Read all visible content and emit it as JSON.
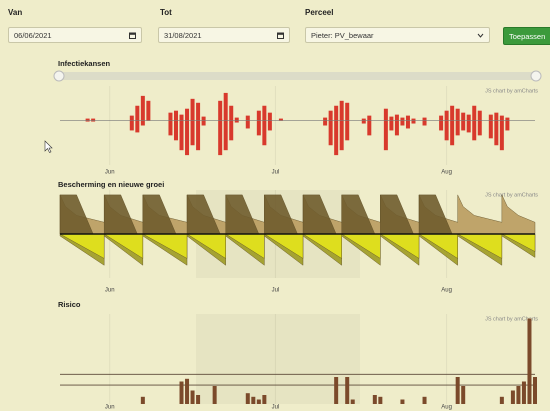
{
  "form": {
    "van_label": "Van",
    "van_value": "06/06/2021",
    "tot_label": "Tot",
    "tot_value": "31/08/2021",
    "perceel_label": "Perceel",
    "perceel_value": "Pieter: PV_bewaar",
    "button": "Toepassen"
  },
  "charts": [
    {
      "type": "bar",
      "title": "Infectiekansen",
      "credit": "JS chart by amCharts",
      "xlim": [
        0,
        86
      ],
      "xticks": [
        {
          "value": 9,
          "label": "Jun"
        },
        {
          "value": 39,
          "label": "Jul"
        },
        {
          "value": 70,
          "label": "Aug"
        }
      ],
      "ylim": [
        -45,
        35
      ],
      "x": [
        5,
        6,
        13,
        14,
        15,
        16,
        20,
        21,
        22,
        23,
        24,
        25,
        26,
        29,
        30,
        31,
        32,
        34,
        36,
        37,
        38,
        40,
        48,
        49,
        50,
        51,
        52,
        55,
        56,
        59,
        60,
        61,
        62,
        63,
        64,
        66,
        69,
        70,
        71,
        72,
        73,
        74,
        75,
        76,
        78,
        79,
        80,
        81
      ],
      "series": [
        {
          "color": "#d8392c",
          "values": [
            2,
            2,
            5,
            15,
            25,
            20,
            8,
            10,
            6,
            12,
            22,
            18,
            4,
            20,
            28,
            15,
            3,
            5,
            10,
            15,
            8,
            2,
            3,
            10,
            15,
            20,
            18,
            2,
            5,
            12,
            4,
            6,
            3,
            5,
            2,
            3,
            5,
            10,
            15,
            12,
            8,
            6,
            15,
            10,
            6,
            8,
            5,
            3
          ]
        },
        {
          "color": "#d8392c",
          "values": [
            -1,
            -1,
            -10,
            -12,
            -5,
            0,
            -15,
            -20,
            -30,
            -35,
            -25,
            -30,
            -5,
            -35,
            -30,
            -20,
            -2,
            -8,
            -15,
            -25,
            -10,
            0,
            -5,
            -25,
            -35,
            -30,
            -20,
            -3,
            -15,
            -30,
            -10,
            -15,
            -5,
            -8,
            -3,
            -5,
            -10,
            -20,
            -25,
            -15,
            -10,
            -12,
            -20,
            -15,
            -18,
            -25,
            -30,
            -10
          ]
        }
      ]
    },
    {
      "type": "area",
      "title": "Bescherming en nieuwe groei",
      "credit": "JS chart by amCharts",
      "xlim": [
        0,
        86
      ],
      "xticks": [
        {
          "value": 9,
          "label": "Jun"
        },
        {
          "value": 39,
          "label": "Jul"
        },
        {
          "value": 70,
          "label": "Aug"
        }
      ],
      "ylim": [
        -45,
        45
      ],
      "series": [
        {
          "color": "#b99b5f",
          "x": [
            0,
            0,
            1,
            3,
            8,
            8,
            9,
            11,
            15,
            15,
            16,
            18,
            23,
            23,
            24,
            26,
            30,
            30,
            31,
            33,
            37,
            37,
            38,
            40,
            44,
            44,
            45,
            47,
            51,
            51,
            52,
            54,
            58,
            58,
            59,
            61,
            65,
            65,
            66,
            68,
            72,
            72,
            73,
            75,
            80,
            80,
            81,
            83,
            86
          ],
          "values": [
            12,
            40,
            28,
            19,
            12,
            40,
            28,
            19,
            12,
            40,
            28,
            19,
            12,
            40,
            28,
            19,
            12,
            40,
            28,
            19,
            12,
            40,
            28,
            19,
            12,
            40,
            28,
            19,
            12,
            40,
            28,
            19,
            12,
            40,
            28,
            19,
            12,
            40,
            28,
            19,
            12,
            40,
            28,
            19,
            12,
            40,
            28,
            19,
            12
          ]
        },
        {
          "color": "#6f5c2d",
          "x": [
            0,
            0,
            3,
            6,
            8,
            8,
            11,
            14,
            15,
            15,
            18,
            21,
            23,
            23,
            26,
            29,
            30,
            30,
            33,
            36,
            37,
            37,
            40,
            43,
            44,
            44,
            47,
            50,
            51,
            51,
            54,
            57,
            58,
            58,
            61,
            64,
            65,
            65,
            68,
            71
          ],
          "values": [
            0,
            40,
            40,
            0,
            0,
            40,
            40,
            0,
            0,
            40,
            40,
            0,
            0,
            40,
            40,
            0,
            0,
            40,
            40,
            0,
            0,
            40,
            40,
            0,
            0,
            40,
            40,
            0,
            0,
            40,
            40,
            0,
            0,
            40,
            40,
            0,
            0,
            40,
            40,
            0
          ]
        },
        {
          "color": "#9d9a22",
          "x": [
            0,
            8,
            8,
            15,
            15,
            23,
            23,
            30,
            30,
            37,
            37,
            44,
            44,
            51,
            51,
            58,
            58,
            65,
            65,
            72,
            72,
            80,
            80,
            86
          ],
          "values": [
            -2,
            -32,
            -2,
            -32,
            -2,
            -32,
            -2,
            -32,
            -2,
            -32,
            -2,
            -32,
            -2,
            -32,
            -2,
            -32,
            -2,
            -32,
            -2,
            -32,
            -2,
            -32,
            -2,
            -24
          ]
        },
        {
          "color": "#e4e41c",
          "x": [
            0,
            8,
            8,
            15,
            15,
            23,
            23,
            30,
            30,
            37,
            37,
            44,
            44,
            51,
            51,
            58,
            58,
            65,
            65,
            72,
            72,
            80,
            80,
            86
          ],
          "values": [
            0,
            -25,
            0,
            -25,
            0,
            -25,
            0,
            -25,
            0,
            -25,
            0,
            -25,
            0,
            -25,
            0,
            -25,
            0,
            -25,
            0,
            -25,
            0,
            -25,
            0,
            -18
          ]
        }
      ]
    },
    {
      "type": "bar",
      "title": "Risico",
      "credit": "JS chart by amCharts",
      "xlim": [
        0,
        86
      ],
      "xticks": [
        {
          "value": 9,
          "label": "Jun"
        },
        {
          "value": 39,
          "label": "Jul"
        },
        {
          "value": 70,
          "label": "Aug"
        }
      ],
      "ylim": [
        0,
        100
      ],
      "thresholds": [
        33,
        21
      ],
      "color": "#7b4a2b",
      "x": [
        15,
        22,
        23,
        24,
        25,
        28,
        34,
        35,
        36,
        37,
        50,
        52,
        53,
        57,
        58,
        62,
        66,
        72,
        73,
        80,
        82,
        83,
        84,
        85,
        86
      ],
      "values": [
        8,
        25,
        28,
        15,
        10,
        20,
        12,
        8,
        5,
        10,
        30,
        30,
        5,
        10,
        8,
        5,
        8,
        30,
        20,
        8,
        15,
        20,
        25,
        95,
        30
      ]
    }
  ]
}
